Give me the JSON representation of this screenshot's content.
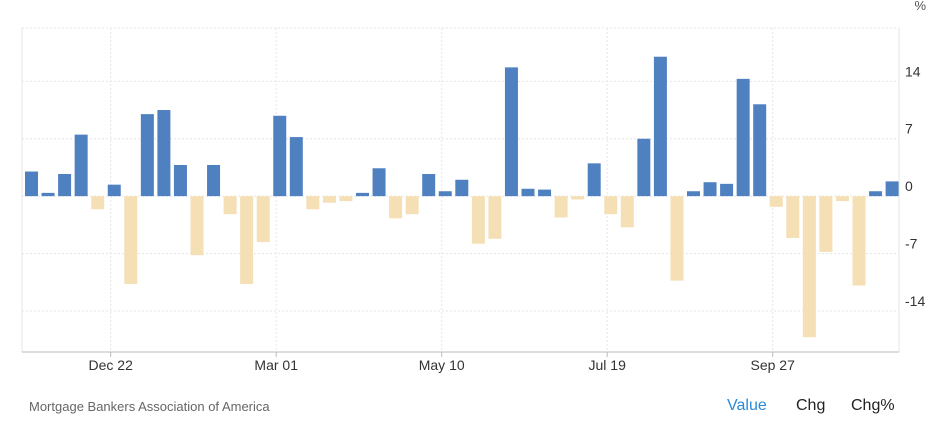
{
  "chart_data": {
    "type": "bar",
    "unit": "%",
    "y_ticks": [
      14,
      7,
      0,
      -7,
      -14
    ],
    "y_tick_labels": [
      "14",
      "7",
      "0",
      "-7",
      "-14"
    ],
    "ylim": [
      -19,
      20.5
    ],
    "x_tick_labels": [
      {
        "label": "Dec 22",
        "index": 5
      },
      {
        "label": "Mar 01",
        "index": 15
      },
      {
        "label": "May 10",
        "index": 25
      },
      {
        "label": "Jul 19",
        "index": 35
      },
      {
        "label": "Sep 27",
        "index": 45
      }
    ],
    "values": [
      3,
      0.4,
      2.7,
      7.5,
      -1.6,
      1.4,
      -10.7,
      10,
      10.5,
      3.8,
      -7.2,
      3.8,
      -2.2,
      -10.7,
      -5.6,
      9.8,
      7.2,
      -1.6,
      -0.8,
      -0.6,
      0.4,
      3.4,
      -2.7,
      -2.2,
      2.7,
      0.6,
      2,
      -5.8,
      -5.2,
      15.7,
      0.9,
      0.8,
      -2.6,
      -0.4,
      4,
      -2.2,
      -3.8,
      7,
      17,
      -10.3,
      0.6,
      1.7,
      1.5,
      14.3,
      11.2,
      -1.3,
      -5.1,
      -17.2,
      -6.8,
      -0.6,
      -10.9,
      0.6,
      1.8
    ],
    "colors": {
      "positive": "#4f81c1",
      "negative": "#f5dfb5",
      "grid": "#e6e6e6",
      "axis": "#bbbbbb"
    }
  },
  "footer": {
    "source": "Mortgage Bankers Association of America",
    "buttons": {
      "value": "Value",
      "chg": "Chg",
      "chg_pct": "Chg%"
    }
  }
}
